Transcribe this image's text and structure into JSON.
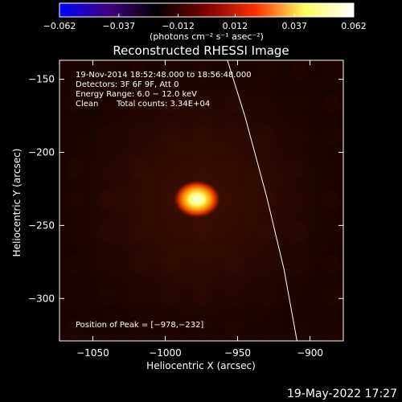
{
  "chart_data": {
    "type": "heatmap",
    "title": "Reconstructed RHESSI Image",
    "xlabel": "Heliocentric X (arcsec)",
    "ylabel": "Heliocentric Y (arcsec)",
    "xlim": [
      -1073,
      -877
    ],
    "ylim": [
      -329,
      -137
    ],
    "x_ticks": [
      -1050,
      -1000,
      -950,
      -900
    ],
    "x_tick_labels": [
      "−1050",
      "−1000",
      "−950",
      "−900"
    ],
    "y_ticks": [
      -150,
      -200,
      -250,
      -300
    ],
    "y_tick_labels": [
      "−150",
      "−200",
      "−250",
      "−300"
    ],
    "colorbar": {
      "range": [
        -0.062,
        0.062
      ],
      "ticks": [
        -0.062,
        -0.037,
        -0.012,
        0.012,
        0.037,
        0.062
      ],
      "tick_labels": [
        "−0.062",
        "−0.037",
        "−0.012",
        "0.012",
        "0.037",
        "0.062"
      ],
      "unit_label": "(photons cm⁻² s⁻¹ asec⁻²)",
      "colors": [
        "#0000ff",
        "#40007f",
        "#000000",
        "#7f0000",
        "#ff3000",
        "#ffff60",
        "#ffffff"
      ]
    },
    "annotations": [
      "19-Nov-2014 18:52:48.000 to 18:56:48.000",
      "Detectors: 3F 6F 9F, Att 0",
      "Energy Range: 6.0 − 12.0 keV",
      "Clean",
      "Total counts: 3.34E+04"
    ],
    "peak_label": "Position of Peak = [−978,−232]",
    "peak": {
      "x": -978,
      "y": -232
    },
    "limb": [
      [
        -957,
        -137
      ],
      [
        -945,
        -175
      ],
      [
        -930,
        -230
      ],
      [
        -918,
        -280
      ],
      [
        -909,
        -329
      ]
    ],
    "grid": false
  },
  "footer_date": "19-May-2022 17:27"
}
